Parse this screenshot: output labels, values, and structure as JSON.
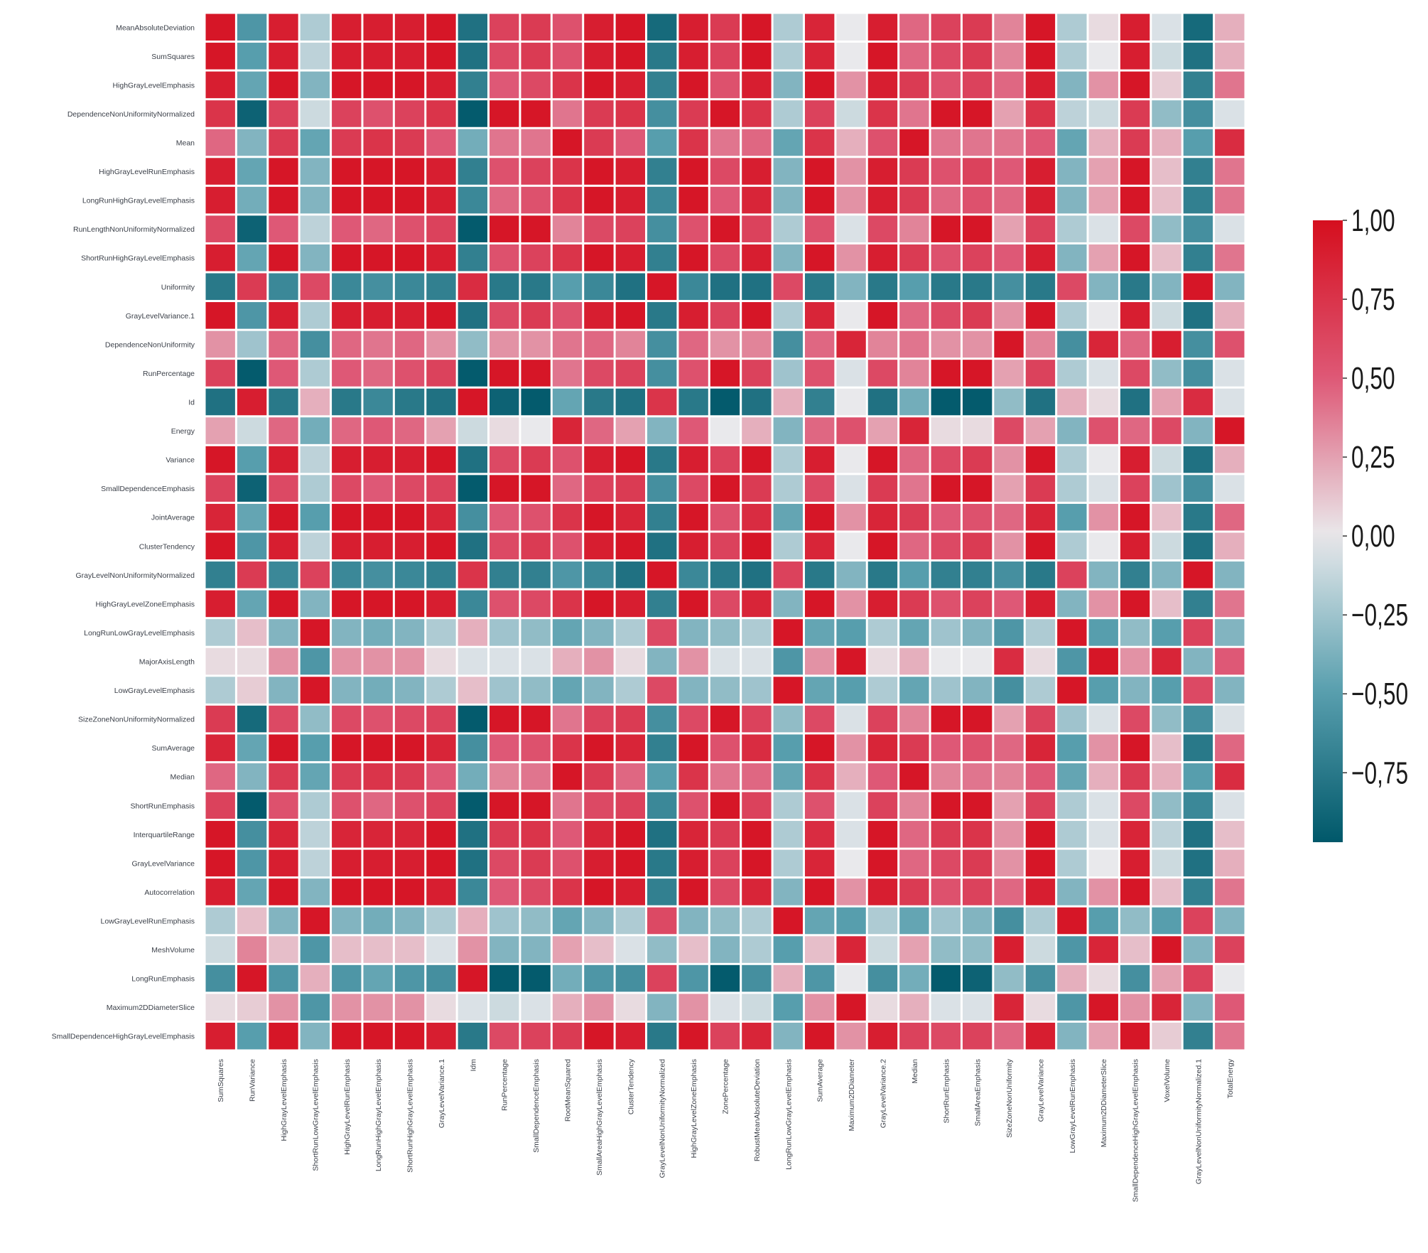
{
  "chart_data": {
    "type": "heatmap",
    "title": "",
    "xlabel": "",
    "ylabel": "",
    "grid": false,
    "legend": "colorbar-right",
    "colormap": {
      "low": "#00586a",
      "mid": "#e9e9ec",
      "high": "#d50f1e"
    },
    "vmin": -0.97,
    "vmax": 1.0,
    "colorbar_ticks": [
      1.0,
      0.75,
      0.5,
      0.25,
      0.0,
      -0.25,
      -0.5,
      -0.75
    ],
    "colorbar_tick_labels": [
      "1,00",
      "0,75",
      "0,50",
      "0,25",
      "0,00",
      "−0,25",
      "−0,50",
      "−0,75"
    ],
    "rows": [
      "MeanAbsoluteDeviation",
      "SumSquares",
      "HighGrayLevelEmphasis",
      "DependenceNonUniformityNormalized",
      "Mean",
      "HighGrayLevelRunEmphasis",
      "LongRunHighGrayLevelEmphasis",
      "RunLengthNonUniformityNormalized",
      "ShortRunHighGrayLevelEmphasis",
      "Uniformity",
      "GrayLevelVariance.1",
      "DependenceNonUniformity",
      "RunPercentage",
      "Id",
      "Energy",
      "Variance",
      "SmallDependenceEmphasis",
      "JointAverage",
      "ClusterTendency",
      "GrayLevelNonUniformityNormalized",
      "HighGrayLevelZoneEmphasis",
      "LongRunLowGrayLevelEmphasis",
      "MajorAxisLength",
      "LowGrayLevelEmphasis",
      "SizeZoneNonUniformityNormalized",
      "SumAverage",
      "Median",
      "ShortRunEmphasis",
      "InterquartileRange",
      "GrayLevelVariance",
      "Autocorrelation",
      "LowGrayLevelRunEmphasis",
      "MeshVolume",
      "LongRunEmphasis",
      "Maximum2DDiameterSlice",
      "SmallDependenceHighGrayLevelEmphasis"
    ],
    "columns": [
      "SumSquares",
      "RunVariance",
      "HighGrayLevelEmphasis",
      "ShortRunLowGrayLevelEmphasis",
      "HighGrayLevelRunEmphasis",
      "LongRunHighGrayLevelEmphasis",
      "ShortRunHighGrayLevelEmphasis",
      "GrayLevelVariance.1",
      "Idm",
      "RunPercentage",
      "SmallDependenceEmphasis",
      "RootMeanSquared",
      "SmallAreaHighGrayLevelEmphasis",
      "ClusterTendency",
      "GrayLevelNonUniformityNormalized",
      "HighGrayLevelZoneEmphasis",
      "ZonePercentage",
      "RobustMeanAbsoluteDeviation",
      "LongRunLowGrayLevelEmphasis",
      "SumAverage",
      "Maximum2DDiameter",
      "GrayLevelVariance.2",
      "Median",
      "ShortRunEmphasis",
      "SmallAreaEmphasis",
      "SizeZoneNonUniformity",
      "GrayLevelVariance",
      "LowGrayLevelRunEmphasis",
      "Maximum2DDiameterSlice",
      "SmallDependenceHighGrayLevelEmphasis",
      "VoxelVolume",
      "GrayLevelNonUniformityNormalized.1",
      "TotalEnergy"
    ],
    "values": [
      [
        0.95,
        -0.55,
        0.9,
        -0.2,
        0.9,
        0.9,
        0.9,
        0.95,
        -0.8,
        0.65,
        0.7,
        0.55,
        0.9,
        0.95,
        -0.85,
        0.9,
        0.7,
        0.95,
        -0.2,
        0.85,
        0.0,
        0.9,
        0.45,
        0.65,
        0.7,
        0.35,
        0.95,
        -0.2,
        0.05,
        0.9,
        -0.05,
        -0.85,
        0.2
      ],
      [
        0.95,
        -0.5,
        0.9,
        -0.15,
        0.9,
        0.9,
        0.9,
        0.95,
        -0.8,
        0.6,
        0.7,
        0.55,
        0.9,
        0.95,
        -0.75,
        0.9,
        0.65,
        0.95,
        -0.2,
        0.85,
        0.0,
        0.95,
        0.45,
        0.6,
        0.7,
        0.35,
        0.95,
        -0.2,
        0.0,
        0.9,
        -0.1,
        -0.8,
        0.2
      ],
      [
        0.9,
        -0.45,
        0.95,
        -0.35,
        0.95,
        0.95,
        0.95,
        0.9,
        -0.7,
        0.5,
        0.6,
        0.75,
        0.95,
        0.9,
        -0.7,
        0.95,
        0.55,
        0.9,
        -0.35,
        0.95,
        0.3,
        0.9,
        0.7,
        0.55,
        0.65,
        0.45,
        0.9,
        -0.35,
        0.3,
        0.95,
        0.1,
        -0.7,
        0.4
      ],
      [
        0.75,
        -0.9,
        0.65,
        -0.1,
        0.65,
        0.55,
        0.65,
        0.75,
        -0.95,
        0.95,
        0.95,
        0.4,
        0.7,
        0.75,
        -0.6,
        0.7,
        0.95,
        0.75,
        -0.2,
        0.65,
        -0.1,
        0.75,
        0.4,
        0.95,
        0.95,
        0.25,
        0.75,
        -0.15,
        -0.1,
        0.7,
        -0.3,
        -0.6,
        -0.05
      ],
      [
        0.45,
        -0.35,
        0.7,
        -0.45,
        0.7,
        0.75,
        0.7,
        0.5,
        -0.4,
        0.4,
        0.4,
        0.95,
        0.7,
        0.5,
        -0.5,
        0.75,
        0.4,
        0.45,
        -0.45,
        0.75,
        0.2,
        0.55,
        0.95,
        0.4,
        0.4,
        0.4,
        0.5,
        -0.45,
        0.2,
        0.7,
        0.2,
        -0.5,
        0.8
      ],
      [
        0.9,
        -0.45,
        0.95,
        -0.35,
        0.95,
        0.95,
        0.95,
        0.9,
        -0.7,
        0.55,
        0.65,
        0.75,
        0.95,
        0.9,
        -0.7,
        0.95,
        0.6,
        0.9,
        -0.35,
        0.95,
        0.3,
        0.9,
        0.7,
        0.55,
        0.65,
        0.5,
        0.9,
        -0.35,
        0.25,
        0.95,
        0.15,
        -0.7,
        0.4
      ],
      [
        0.9,
        -0.4,
        0.95,
        -0.35,
        0.95,
        0.95,
        0.95,
        0.9,
        -0.65,
        0.45,
        0.55,
        0.75,
        0.95,
        0.9,
        -0.65,
        0.95,
        0.5,
        0.85,
        -0.35,
        0.95,
        0.3,
        0.9,
        0.7,
        0.45,
        0.55,
        0.45,
        0.9,
        -0.35,
        0.25,
        0.95,
        0.15,
        -0.7,
        0.4
      ],
      [
        0.6,
        -0.9,
        0.5,
        -0.15,
        0.5,
        0.45,
        0.55,
        0.65,
        -0.95,
        0.95,
        0.95,
        0.35,
        0.6,
        0.65,
        -0.6,
        0.55,
        0.95,
        0.65,
        -0.2,
        0.55,
        -0.05,
        0.6,
        0.35,
        0.95,
        0.95,
        0.25,
        0.65,
        -0.2,
        -0.05,
        0.6,
        -0.3,
        -0.6,
        -0.05
      ],
      [
        0.9,
        -0.45,
        0.95,
        -0.35,
        0.95,
        0.95,
        0.95,
        0.9,
        -0.7,
        0.55,
        0.65,
        0.75,
        0.95,
        0.9,
        -0.7,
        0.95,
        0.6,
        0.9,
        -0.35,
        0.95,
        0.3,
        0.9,
        0.7,
        0.55,
        0.65,
        0.5,
        0.9,
        -0.35,
        0.25,
        0.95,
        0.15,
        -0.7,
        0.4
      ],
      [
        -0.75,
        0.7,
        -0.65,
        0.6,
        -0.65,
        -0.6,
        -0.65,
        -0.7,
        0.8,
        -0.75,
        -0.75,
        -0.5,
        -0.65,
        -0.8,
        0.95,
        -0.65,
        -0.8,
        -0.8,
        0.6,
        -0.75,
        -0.35,
        -0.75,
        -0.5,
        -0.75,
        -0.75,
        -0.6,
        -0.75,
        0.6,
        -0.35,
        -0.75,
        -0.35,
        0.95,
        -0.35
      ],
      [
        0.95,
        -0.55,
        0.9,
        -0.2,
        0.9,
        0.9,
        0.9,
        0.95,
        -0.8,
        0.6,
        0.7,
        0.55,
        0.9,
        0.95,
        -0.75,
        0.9,
        0.65,
        0.95,
        -0.2,
        0.85,
        0.0,
        0.95,
        0.45,
        0.6,
        0.7,
        0.3,
        0.95,
        -0.2,
        0.0,
        0.9,
        -0.1,
        -0.8,
        0.2
      ],
      [
        0.3,
        -0.25,
        0.45,
        -0.6,
        0.45,
        0.4,
        0.45,
        0.3,
        -0.3,
        0.3,
        0.3,
        0.4,
        0.45,
        0.35,
        -0.6,
        0.45,
        0.3,
        0.35,
        -0.6,
        0.45,
        0.85,
        0.35,
        0.4,
        0.3,
        0.3,
        0.95,
        0.35,
        -0.6,
        0.85,
        0.45,
        0.9,
        -0.6,
        0.55
      ],
      [
        0.65,
        -0.95,
        0.5,
        -0.2,
        0.5,
        0.45,
        0.55,
        0.65,
        -0.95,
        0.95,
        0.95,
        0.4,
        0.6,
        0.65,
        -0.6,
        0.55,
        0.95,
        0.65,
        -0.25,
        0.55,
        -0.05,
        0.6,
        0.35,
        0.95,
        0.95,
        0.25,
        0.65,
        -0.2,
        -0.05,
        0.6,
        -0.3,
        -0.6,
        -0.05
      ],
      [
        -0.8,
        0.9,
        -0.75,
        0.2,
        -0.75,
        -0.65,
        -0.75,
        -0.8,
        0.95,
        -0.9,
        -0.95,
        -0.45,
        -0.75,
        -0.8,
        0.75,
        -0.75,
        -0.95,
        -0.8,
        0.2,
        -0.7,
        0.0,
        -0.8,
        -0.4,
        -0.95,
        -0.95,
        -0.3,
        -0.8,
        0.2,
        0.05,
        -0.8,
        0.25,
        0.8,
        -0.05
      ],
      [
        0.25,
        -0.1,
        0.45,
        -0.4,
        0.45,
        0.5,
        0.45,
        0.25,
        -0.1,
        0.05,
        0.0,
        0.85,
        0.45,
        0.25,
        -0.35,
        0.5,
        0.0,
        0.2,
        -0.35,
        0.45,
        0.55,
        0.25,
        0.85,
        0.05,
        0.05,
        0.6,
        0.25,
        -0.35,
        0.55,
        0.45,
        0.6,
        -0.35,
        0.95
      ],
      [
        0.95,
        -0.5,
        0.9,
        -0.15,
        0.9,
        0.9,
        0.9,
        0.95,
        -0.8,
        0.6,
        0.7,
        0.55,
        0.9,
        0.95,
        -0.75,
        0.9,
        0.65,
        0.95,
        -0.2,
        0.9,
        0.0,
        0.95,
        0.45,
        0.6,
        0.7,
        0.3,
        0.95,
        -0.2,
        0.0,
        0.9,
        -0.1,
        -0.8,
        0.2
      ],
      [
        0.65,
        -0.9,
        0.6,
        -0.2,
        0.6,
        0.5,
        0.6,
        0.65,
        -0.95,
        0.95,
        0.95,
        0.45,
        0.65,
        0.7,
        -0.6,
        0.6,
        0.95,
        0.7,
        -0.2,
        0.6,
        -0.05,
        0.7,
        0.4,
        0.95,
        0.95,
        0.25,
        0.7,
        -0.2,
        -0.05,
        0.65,
        -0.25,
        -0.6,
        -0.05
      ],
      [
        0.85,
        -0.45,
        0.95,
        -0.5,
        0.95,
        0.95,
        0.95,
        0.85,
        -0.6,
        0.5,
        0.55,
        0.75,
        0.95,
        0.85,
        -0.7,
        0.95,
        0.55,
        0.8,
        -0.45,
        0.95,
        0.3,
        0.85,
        0.7,
        0.5,
        0.55,
        0.45,
        0.85,
        -0.5,
        0.3,
        0.95,
        0.15,
        -0.75,
        0.45
      ],
      [
        0.95,
        -0.55,
        0.9,
        -0.15,
        0.9,
        0.9,
        0.9,
        0.95,
        -0.8,
        0.6,
        0.7,
        0.55,
        0.9,
        0.95,
        -0.8,
        0.9,
        0.65,
        0.95,
        -0.2,
        0.85,
        0.0,
        0.95,
        0.45,
        0.6,
        0.7,
        0.3,
        0.95,
        -0.2,
        0.0,
        0.9,
        -0.1,
        -0.8,
        0.2
      ],
      [
        -0.7,
        0.7,
        -0.65,
        0.65,
        -0.65,
        -0.6,
        -0.65,
        -0.7,
        0.75,
        -0.7,
        -0.7,
        -0.55,
        -0.65,
        -0.8,
        0.95,
        -0.65,
        -0.75,
        -0.8,
        0.65,
        -0.75,
        -0.35,
        -0.75,
        -0.5,
        -0.7,
        -0.7,
        -0.6,
        -0.75,
        0.65,
        -0.35,
        -0.7,
        -0.35,
        0.95,
        -0.35
      ],
      [
        0.9,
        -0.45,
        0.95,
        -0.35,
        0.95,
        0.95,
        0.95,
        0.9,
        -0.65,
        0.55,
        0.6,
        0.75,
        0.95,
        0.9,
        -0.7,
        0.95,
        0.6,
        0.85,
        -0.35,
        0.95,
        0.3,
        0.9,
        0.7,
        0.55,
        0.65,
        0.5,
        0.9,
        -0.35,
        0.3,
        0.95,
        0.15,
        -0.7,
        0.4
      ],
      [
        -0.2,
        0.15,
        -0.35,
        0.95,
        -0.35,
        -0.4,
        -0.35,
        -0.2,
        0.2,
        -0.25,
        -0.3,
        -0.45,
        -0.35,
        -0.2,
        0.6,
        -0.35,
        -0.3,
        -0.2,
        0.95,
        -0.45,
        -0.5,
        -0.2,
        -0.45,
        -0.25,
        -0.35,
        -0.55,
        -0.2,
        0.95,
        -0.5,
        -0.3,
        -0.5,
        0.65,
        -0.35
      ],
      [
        0.05,
        0.05,
        0.3,
        -0.55,
        0.3,
        0.3,
        0.3,
        0.05,
        -0.05,
        -0.05,
        -0.05,
        0.2,
        0.3,
        0.05,
        -0.35,
        0.3,
        -0.05,
        -0.05,
        -0.55,
        0.3,
        0.95,
        0.05,
        0.2,
        0.0,
        0.0,
        0.8,
        0.05,
        -0.55,
        0.95,
        0.3,
        0.85,
        -0.35,
        0.5
      ],
      [
        -0.2,
        0.1,
        -0.35,
        0.95,
        -0.35,
        -0.4,
        -0.35,
        -0.2,
        0.15,
        -0.25,
        -0.3,
        -0.45,
        -0.35,
        -0.2,
        0.6,
        -0.35,
        -0.3,
        -0.25,
        0.95,
        -0.45,
        -0.5,
        -0.2,
        -0.45,
        -0.25,
        -0.35,
        -0.6,
        -0.2,
        0.95,
        -0.5,
        -0.35,
        -0.5,
        0.6,
        -0.35
      ],
      [
        0.7,
        -0.85,
        0.6,
        -0.3,
        0.6,
        0.55,
        0.6,
        0.65,
        -0.95,
        0.95,
        0.95,
        0.4,
        0.65,
        0.7,
        -0.6,
        0.6,
        0.95,
        0.65,
        -0.3,
        0.6,
        -0.05,
        0.65,
        0.35,
        0.95,
        0.95,
        0.25,
        0.65,
        -0.25,
        -0.05,
        0.6,
        -0.3,
        -0.6,
        -0.05
      ],
      [
        0.85,
        -0.45,
        0.95,
        -0.5,
        0.95,
        0.95,
        0.95,
        0.85,
        -0.6,
        0.5,
        0.55,
        0.75,
        0.95,
        0.85,
        -0.7,
        0.95,
        0.55,
        0.8,
        -0.5,
        0.95,
        0.3,
        0.85,
        0.7,
        0.5,
        0.55,
        0.45,
        0.85,
        -0.5,
        0.3,
        0.95,
        0.15,
        -0.75,
        0.45
      ],
      [
        0.45,
        -0.35,
        0.7,
        -0.45,
        0.7,
        0.75,
        0.7,
        0.5,
        -0.4,
        0.35,
        0.4,
        0.95,
        0.7,
        0.45,
        -0.5,
        0.75,
        0.4,
        0.45,
        -0.45,
        0.75,
        0.2,
        0.5,
        0.95,
        0.35,
        0.4,
        0.35,
        0.5,
        -0.45,
        0.2,
        0.7,
        0.2,
        -0.5,
        0.8
      ],
      [
        0.65,
        -0.95,
        0.55,
        -0.2,
        0.55,
        0.45,
        0.55,
        0.65,
        -0.95,
        0.95,
        0.95,
        0.4,
        0.6,
        0.65,
        -0.65,
        0.55,
        0.95,
        0.65,
        -0.2,
        0.55,
        -0.05,
        0.65,
        0.35,
        0.95,
        0.95,
        0.25,
        0.65,
        -0.2,
        -0.05,
        0.6,
        -0.3,
        -0.65,
        -0.05
      ],
      [
        0.95,
        -0.6,
        0.85,
        -0.15,
        0.85,
        0.85,
        0.85,
        0.95,
        -0.8,
        0.7,
        0.75,
        0.5,
        0.85,
        0.95,
        -0.8,
        0.85,
        0.7,
        0.95,
        -0.2,
        0.8,
        -0.05,
        0.95,
        0.45,
        0.7,
        0.75,
        0.3,
        0.95,
        -0.2,
        -0.05,
        0.85,
        -0.15,
        -0.8,
        0.15
      ],
      [
        0.95,
        -0.55,
        0.9,
        -0.15,
        0.9,
        0.9,
        0.9,
        0.95,
        -0.8,
        0.6,
        0.7,
        0.55,
        0.9,
        0.95,
        -0.75,
        0.9,
        0.65,
        0.95,
        -0.2,
        0.85,
        0.0,
        0.95,
        0.45,
        0.6,
        0.7,
        0.3,
        0.95,
        -0.2,
        0.0,
        0.9,
        -0.1,
        -0.8,
        0.2
      ],
      [
        0.9,
        -0.45,
        0.95,
        -0.35,
        0.95,
        0.95,
        0.95,
        0.9,
        -0.65,
        0.5,
        0.6,
        0.75,
        0.95,
        0.9,
        -0.7,
        0.95,
        0.6,
        0.85,
        -0.35,
        0.95,
        0.3,
        0.9,
        0.7,
        0.55,
        0.65,
        0.45,
        0.9,
        -0.35,
        0.3,
        0.95,
        0.15,
        -0.7,
        0.4
      ],
      [
        -0.2,
        0.15,
        -0.35,
        0.95,
        -0.35,
        -0.4,
        -0.35,
        -0.2,
        0.2,
        -0.25,
        -0.3,
        -0.45,
        -0.35,
        -0.2,
        0.6,
        -0.35,
        -0.3,
        -0.2,
        0.95,
        -0.45,
        -0.5,
        -0.2,
        -0.45,
        -0.25,
        -0.35,
        -0.6,
        -0.2,
        0.95,
        -0.5,
        -0.3,
        -0.5,
        0.65,
        -0.35
      ],
      [
        -0.1,
        0.35,
        0.15,
        -0.55,
        0.15,
        0.15,
        0.15,
        -0.05,
        0.3,
        -0.35,
        -0.35,
        0.25,
        0.15,
        -0.05,
        -0.3,
        0.15,
        -0.35,
        -0.2,
        -0.5,
        0.15,
        0.85,
        -0.1,
        0.25,
        -0.3,
        -0.3,
        0.9,
        -0.1,
        -0.55,
        0.85,
        0.15,
        0.95,
        -0.35,
        0.65
      ],
      [
        -0.6,
        0.95,
        -0.55,
        0.2,
        -0.55,
        -0.45,
        -0.55,
        -0.6,
        0.95,
        -0.95,
        -0.95,
        -0.4,
        -0.55,
        -0.6,
        0.65,
        -0.55,
        -0.95,
        -0.6,
        0.2,
        -0.55,
        0.0,
        -0.6,
        -0.4,
        -0.95,
        -0.9,
        -0.3,
        -0.6,
        0.2,
        0.05,
        -0.6,
        0.25,
        0.65,
        0.0
      ],
      [
        0.05,
        0.1,
        0.3,
        -0.55,
        0.3,
        0.3,
        0.3,
        0.05,
        -0.05,
        -0.1,
        -0.05,
        0.2,
        0.3,
        0.05,
        -0.35,
        0.3,
        -0.05,
        -0.1,
        -0.5,
        0.3,
        0.95,
        0.05,
        0.2,
        -0.05,
        -0.05,
        0.85,
        0.05,
        -0.55,
        0.95,
        0.3,
        0.85,
        -0.35,
        0.5
      ],
      [
        0.9,
        -0.5,
        0.95,
        -0.35,
        0.95,
        0.95,
        0.95,
        0.9,
        -0.75,
        0.6,
        0.65,
        0.7,
        0.95,
        0.9,
        -0.75,
        0.95,
        0.65,
        0.85,
        -0.35,
        0.95,
        0.3,
        0.9,
        0.65,
        0.6,
        0.65,
        0.45,
        0.9,
        -0.35,
        0.25,
        0.95,
        0.1,
        -0.7,
        0.4
      ]
    ]
  }
}
